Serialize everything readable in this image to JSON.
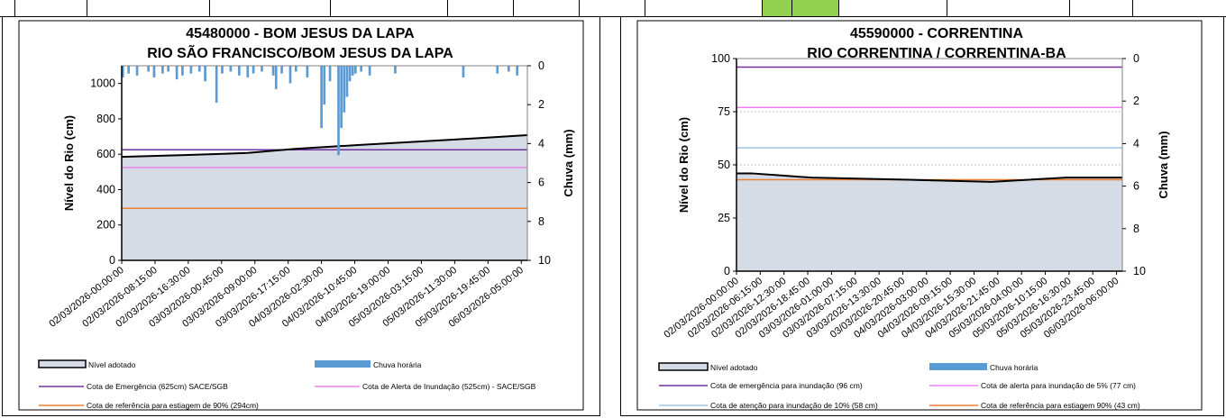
{
  "chart_data": [
    {
      "type": "area",
      "title": "45480000 - BOM JESUS DA LAPA",
      "subtitle": "RIO SÃO FRANCISCO/BOM JESUS DA LAPA",
      "ylabel": "Nível do Rio (cm)",
      "y2label": "Chuva (mm)",
      "ylim": [
        0,
        1100
      ],
      "yticks": [
        0,
        200,
        400,
        600,
        800,
        1000
      ],
      "y2lim": [
        0,
        10
      ],
      "y2ticks": [
        0,
        2,
        4,
        6,
        8,
        10
      ],
      "y2_inverted": true,
      "grid": false,
      "x_start": "02/03/2026 00:00",
      "x_end": "06/03/2026 07:00",
      "xtick_labels": [
        "02/03/2026-00:00:00",
        "02/03/2026-08:15:00",
        "02/03/2026-16:30:00",
        "03/03/2026-00:45:00",
        "03/03/2026-09:00:00",
        "03/03/2026-17:15:00",
        "04/03/2026-02:30:00",
        "04/03/2026-10:45:00",
        "04/03/2026-19:00:00",
        "05/03/2026-03:15:00",
        "05/03/2026-11:30:00",
        "05/03/2026-19:45:00",
        "06/03/2026-05:00:00"
      ],
      "level_series": {
        "name": "Nível adotado",
        "x": [
          "02/03/2026 00:00",
          "02/03/2026 16:00",
          "03/03/2026 08:00",
          "03/03/2026 20:00",
          "04/03/2026 12:00",
          "05/03/2026 04:00",
          "05/03/2026 18:00",
          "06/03/2026 07:00"
        ],
        "values": [
          585,
          595,
          607,
          630,
          652,
          672,
          690,
          708
        ]
      },
      "rain_series": {
        "name": "Chuva horária",
        "values": [
          0.6,
          0,
          0.4,
          0,
          0,
          0.5,
          0,
          0,
          0,
          0.3,
          0,
          0.6,
          0,
          0,
          0.4,
          0,
          0.3,
          0,
          0,
          0.7,
          0,
          0.5,
          0,
          0,
          0.4,
          0,
          0,
          0.3,
          0,
          0.8,
          0,
          0,
          0,
          1.9,
          0,
          0.4,
          0,
          0,
          0.3,
          0,
          0,
          0.5,
          0,
          0,
          0.6,
          0,
          0.4,
          0,
          0,
          0.3,
          0,
          0,
          0,
          0.5,
          1.2,
          0,
          0.4,
          0,
          0,
          0.9,
          0,
          0.3,
          0,
          0,
          0,
          0.6,
          0,
          0,
          0,
          0,
          3.2,
          2.0,
          0,
          0.8,
          0,
          0,
          4.6,
          3.2,
          2.4,
          1.6,
          0.8,
          0.5,
          0.4,
          0,
          0.3,
          0,
          0,
          0.5,
          0,
          0,
          0,
          0,
          0,
          0,
          0,
          0,
          0.4,
          0,
          0,
          0,
          0,
          0,
          0,
          0,
          0,
          0,
          0,
          0,
          0,
          0,
          0,
          0,
          0,
          0,
          0,
          0,
          0,
          0,
          0,
          0,
          0.6,
          0,
          0,
          0,
          0,
          0,
          0,
          0,
          0,
          0,
          0,
          0,
          0.4,
          0,
          0,
          0,
          0.3,
          0,
          0,
          0.5,
          0,
          0,
          0
        ]
      },
      "reference_lines": [
        {
          "name": "Cota de Emergência (625cm) SACE/SGB",
          "value": 625,
          "color": "#7030a0"
        },
        {
          "name": "Cota de Alerta de Inundação (525cm) - SACE/SGB",
          "value": 525,
          "color": "#ee82ee"
        },
        {
          "name": "Cota de referência para estiagem de 90% (294cm)",
          "value": 294,
          "color": "#ed7d31"
        }
      ],
      "legend": [
        {
          "label": "Nível adotado",
          "kind": "area"
        },
        {
          "label": "Chuva horária",
          "kind": "bar"
        },
        {
          "label": "Cota de Emergência (625cm) SACE/SGB",
          "kind": "line",
          "color": "#7030a0"
        },
        {
          "label": "Cota de Alerta de Inundação (525cm) - SACE/SGB",
          "kind": "line",
          "color": "#ee82ee"
        },
        {
          "label": "Cota de referência para estiagem de 90% (294cm)",
          "kind": "line",
          "color": "#ed7d31"
        }
      ]
    },
    {
      "type": "area",
      "title": "45590000 - CORRENTINA",
      "subtitle": "RIO CORRENTINA / CORRENTINA-BA",
      "ylabel": "Nível do Rio (cm)",
      "y2label": "Chuva (mm)",
      "ylim": [
        0,
        100
      ],
      "yticks": [
        0,
        25,
        50,
        75,
        100
      ],
      "y2lim": [
        0,
        10
      ],
      "y2ticks": [
        0,
        2,
        4,
        6,
        8,
        10
      ],
      "y2_inverted": true,
      "grid": true,
      "x_start": "02/03/2026 00:00",
      "x_end": "06/03/2026 07:00",
      "xtick_labels": [
        "02/03/2026-00:00:00",
        "02/03/2026-06:15:00",
        "02/03/2026-12:30:00",
        "02/03/2026-18:45:00",
        "03/03/2026-01:00:00",
        "03/03/2026-07:15:00",
        "03/03/2026-13:30:00",
        "03/03/2026-20:45:00",
        "04/03/2026-03:00:00",
        "04/03/2026-09:15:00",
        "04/03/2026-15:30:00",
        "04/03/2026-21:45:00",
        "05/03/2026-04:00:00",
        "05/03/2026-10:15:00",
        "05/03/2026-16:30:00",
        "05/03/2026-23:45:00",
        "06/03/2026-06:00:00"
      ],
      "level_series": {
        "name": "Nível adotado",
        "x": [
          "02/03/2026 00:00",
          "02/03/2026 04:00",
          "02/03/2026 12:00",
          "02/03/2026 20:00",
          "03/03/2026 22:00",
          "04/03/2026 20:00",
          "05/03/2026 16:00",
          "06/03/2026 07:00"
        ],
        "values": [
          46,
          46,
          45,
          44,
          43,
          42,
          44,
          44
        ]
      },
      "rain_series": {
        "name": "Chuva horária",
        "values": []
      },
      "reference_lines": [
        {
          "name": "Cota de emergência para inundação (96 cm)",
          "value": 96,
          "color": "#7030a0"
        },
        {
          "name": "Cota de alerta para inundação de 5% (77 cm)",
          "value": 77,
          "color": "#ee82ee"
        },
        {
          "name": "Cota de atenção para inundação de 10% (58 cm)",
          "value": 58,
          "color": "#9dc3e6"
        },
        {
          "name": "Cota de referência para estiagem 90% (43 cm)",
          "value": 43,
          "color": "#ed7d31"
        }
      ],
      "legend": [
        {
          "label": "Nível adotado",
          "kind": "area"
        },
        {
          "label": "Chuva horária",
          "kind": "bar"
        },
        {
          "label": "Cota de emergência para inundação (96 cm)",
          "kind": "line",
          "color": "#7030a0"
        },
        {
          "label": "Cota de alerta para inundação de 5% (77 cm)",
          "kind": "line",
          "color": "#ee82ee"
        },
        {
          "label": "Cota de atenção para inundação de 10% (58 cm)",
          "kind": "line",
          "color": "#9dc3e6"
        },
        {
          "label": "Cota de referência para estiagem 90% (43 cm)",
          "kind": "line",
          "color": "#ed7d31"
        }
      ]
    }
  ],
  "colors": {
    "area_fill": "#d6dce5",
    "level_line": "#000000",
    "rain_bar": "#5b9bd5",
    "grid": "#bfbfbf"
  }
}
